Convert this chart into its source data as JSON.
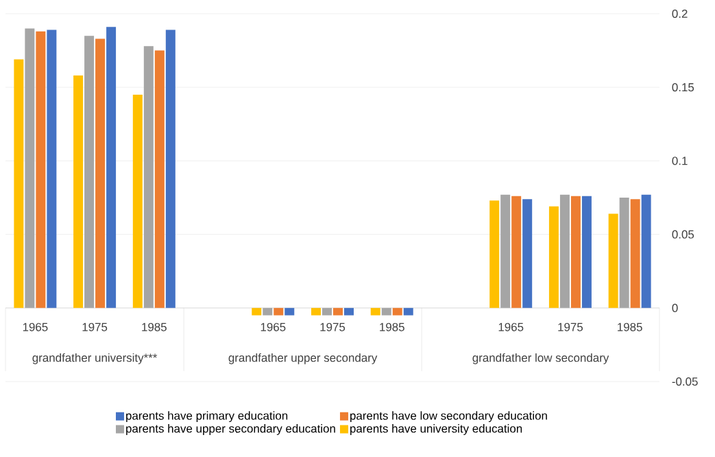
{
  "chart_data": {
    "type": "bar",
    "categories": [
      "1965",
      "1975",
      "1985",
      null,
      "1965",
      "1975",
      "1985",
      null,
      "1965",
      "1975",
      "1985"
    ],
    "series": [
      {
        "name": "parents have university education",
        "color": "#ffc000",
        "values": [
          0.169,
          0.158,
          0.145,
          null,
          -0.005,
          -0.005,
          -0.005,
          null,
          0.073,
          0.069,
          0.064
        ]
      },
      {
        "name": "parents have upper secondary education",
        "color": "#a5a5a5",
        "values": [
          0.19,
          0.185,
          0.178,
          null,
          -0.005,
          -0.005,
          -0.005,
          null,
          0.077,
          0.077,
          0.075
        ]
      },
      {
        "name": "parents have low secondary education",
        "color": "#ed7d31",
        "values": [
          0.188,
          0.183,
          0.175,
          null,
          -0.005,
          -0.005,
          -0.005,
          null,
          0.076,
          0.076,
          0.074
        ]
      },
      {
        "name": "parents have primary education",
        "color": "#4472c4",
        "values": [
          0.189,
          0.191,
          0.189,
          null,
          -0.005,
          -0.005,
          -0.005,
          null,
          0.074,
          0.076,
          0.077
        ]
      }
    ],
    "annotations": [
      "grandfather university***",
      "grandfather upper secondary",
      "grandfather low secondary"
    ],
    "ylim": [
      -0.05,
      0.2
    ],
    "yticks": [
      -0.05,
      0,
      0.05,
      0.1,
      0.15,
      0.2
    ],
    "grid": "y",
    "legend": "bottom"
  }
}
